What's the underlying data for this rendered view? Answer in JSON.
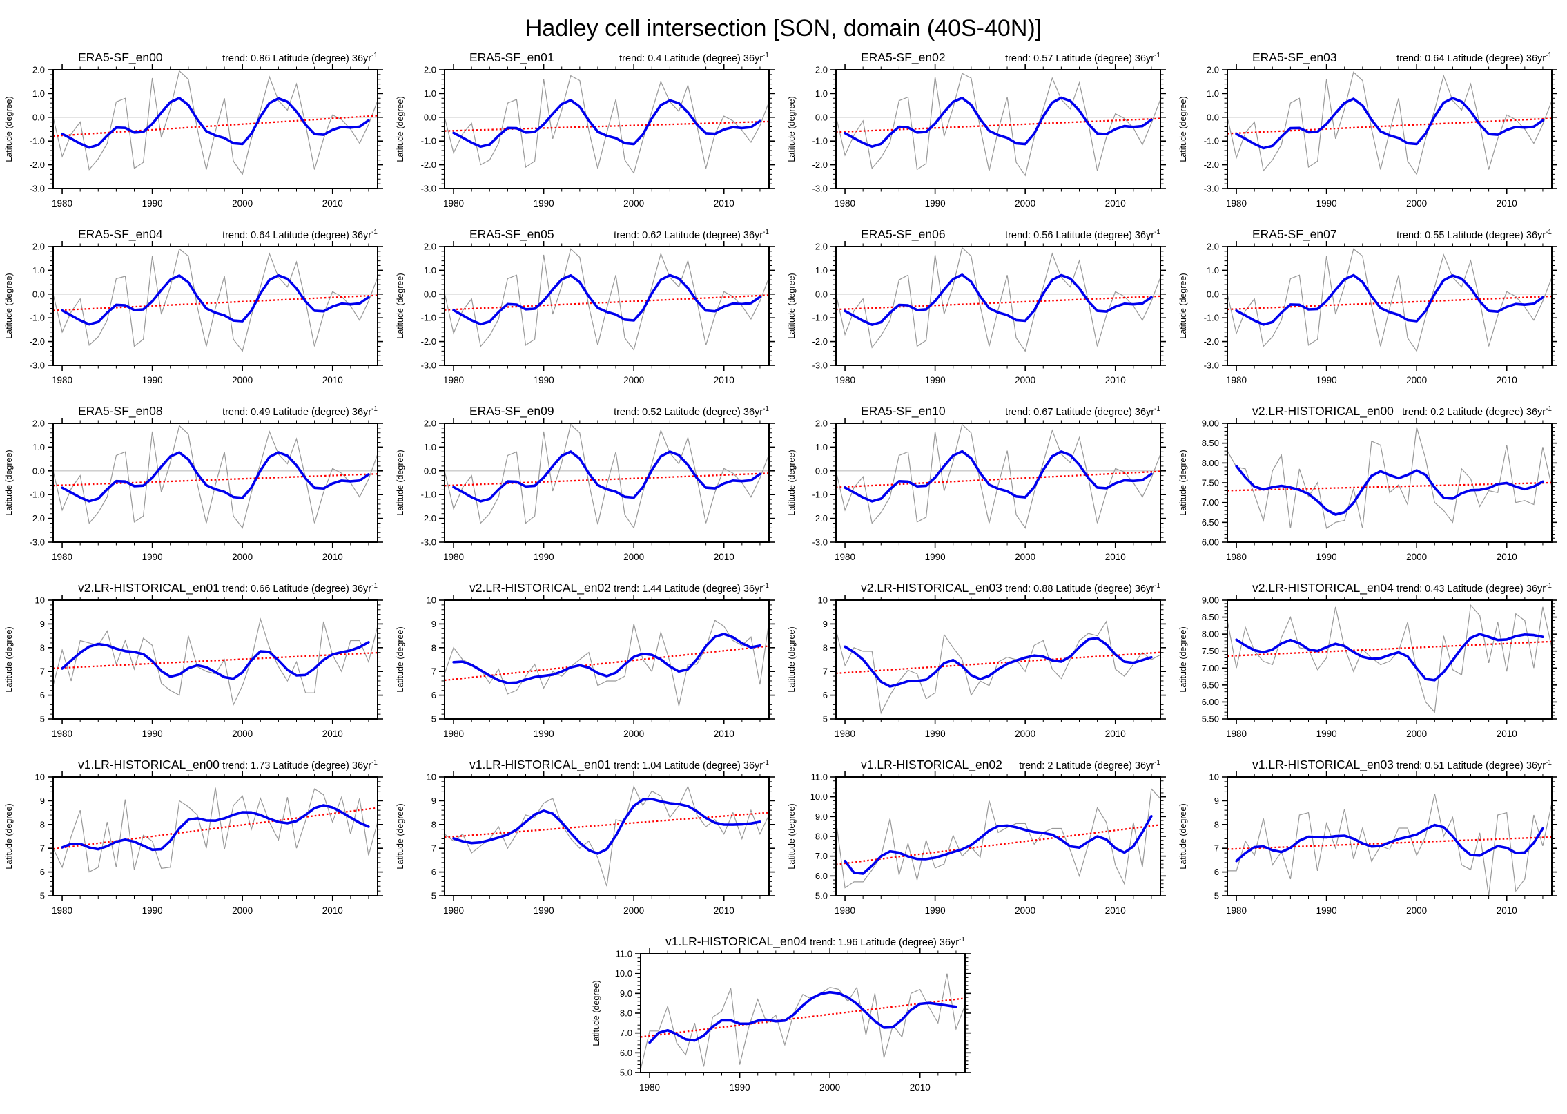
{
  "title": "Hadley cell intersection [SON, domain (40S-40N)]",
  "chart_data": {
    "type": "line",
    "x_range": [
      1979,
      2015
    ],
    "xticks": [
      1980,
      1990,
      2000,
      2010
    ],
    "x_minor_step": 2,
    "ylabel": "Latitude (degree)",
    "trend_prefix": "trend:",
    "trend_units": "Latitude (degree) 36yr",
    "trend_sup": "-1",
    "legend": "gray: annual value, blue: smoothed, red dotted: linear trend",
    "colors": {
      "raw_line": "#999999",
      "smooth_line": "#0000ee",
      "trend_line": "#ff0000",
      "zero_line": "#c9c9c9",
      "frame": "#000000"
    },
    "panels": [
      {
        "title": "ERA5-SF_en00",
        "trend": "0.86",
        "ylim": [
          -3,
          2
        ],
        "ymajor": 1,
        "yminor": 0.2,
        "ydec": 1,
        "zero": true,
        "raw": [
          0.0,
          -1.65,
          -0.7,
          -0.2,
          -2.2,
          -1.75,
          -1.1,
          0.65,
          0.8,
          -2.15,
          -1.9,
          1.65,
          -0.85,
          0.35,
          1.95,
          1.6,
          -0.5,
          -2.2,
          -0.6,
          0.8,
          -1.85,
          -2.4,
          -0.9,
          0.3,
          1.7,
          0.7,
          0.3,
          1.4,
          -0.3,
          -2.2,
          -0.9,
          0.1,
          -0.1,
          -0.5,
          -1.1,
          -0.3,
          0.7
        ]
      },
      {
        "title": "ERA5-SF_en01",
        "trend": "0.4",
        "ylim": [
          -3,
          2
        ],
        "ymajor": 1,
        "yminor": 0.2,
        "ydec": 1,
        "zero": true,
        "raw": [
          0.0,
          -1.5,
          -0.7,
          -0.25,
          -2.0,
          -1.8,
          -1.1,
          0.6,
          0.75,
          -2.1,
          -1.85,
          1.6,
          -0.9,
          0.3,
          1.75,
          1.55,
          -0.55,
          -2.15,
          -0.65,
          0.75,
          -1.8,
          -2.35,
          -0.95,
          0.25,
          1.5,
          0.65,
          0.25,
          1.35,
          -0.35,
          -2.15,
          -0.7,
          0.05,
          -0.15,
          -0.55,
          -1.05,
          -0.35,
          0.65
        ]
      },
      {
        "title": "ERA5-SF_en02",
        "trend": "0.57",
        "ylim": [
          -3,
          2
        ],
        "ymajor": 1,
        "yminor": 0.2,
        "ydec": 1,
        "zero": true,
        "raw": [
          0.05,
          -1.6,
          -0.75,
          -0.15,
          -2.15,
          -1.7,
          -1.05,
          0.7,
          0.85,
          -2.2,
          -1.95,
          1.7,
          -0.8,
          0.4,
          1.85,
          1.65,
          -0.45,
          -2.25,
          -0.55,
          0.85,
          -1.9,
          -2.45,
          -0.85,
          0.35,
          1.65,
          0.75,
          0.35,
          1.45,
          -0.25,
          -2.25,
          -0.85,
          0.15,
          -0.05,
          -0.45,
          -1.15,
          -0.25,
          0.75
        ]
      },
      {
        "title": "ERA5-SF_en03",
        "trend": "0.64",
        "ylim": [
          -3,
          2
        ],
        "ymajor": 1,
        "yminor": 0.2,
        "ydec": 1,
        "zero": true,
        "raw": [
          0.0,
          -1.7,
          -0.65,
          -0.2,
          -2.25,
          -1.8,
          -1.15,
          0.6,
          0.8,
          -2.1,
          -1.85,
          1.6,
          -0.9,
          0.35,
          1.9,
          1.55,
          -0.5,
          -2.2,
          -0.6,
          0.8,
          -1.85,
          -2.4,
          -0.9,
          0.3,
          1.75,
          0.7,
          0.3,
          1.4,
          -0.3,
          -2.2,
          -0.9,
          0.1,
          -0.1,
          -0.5,
          -1.1,
          -0.3,
          0.7
        ]
      },
      {
        "title": "ERA5-SF_en04",
        "trend": "0.64",
        "ylim": [
          -3,
          2
        ],
        "ymajor": 1,
        "yminor": 0.2,
        "ydec": 1,
        "zero": true,
        "raw": [
          0.0,
          -1.6,
          -0.75,
          -0.2,
          -2.15,
          -1.8,
          -1.1,
          0.65,
          0.75,
          -2.2,
          -1.9,
          1.6,
          -0.85,
          0.3,
          1.9,
          1.6,
          -0.55,
          -2.2,
          -0.6,
          0.75,
          -1.9,
          -2.4,
          -0.9,
          0.3,
          1.7,
          0.7,
          0.3,
          1.35,
          -0.3,
          -2.2,
          -0.85,
          0.1,
          -0.1,
          -0.5,
          -1.1,
          -0.3,
          0.7
        ]
      },
      {
        "title": "ERA5-SF_en05",
        "trend": "0.62",
        "ylim": [
          -3,
          2
        ],
        "ymajor": 1,
        "yminor": 0.2,
        "ydec": 1,
        "zero": true,
        "raw": [
          0.05,
          -1.65,
          -0.7,
          -0.2,
          -2.2,
          -1.75,
          -1.05,
          0.65,
          0.8,
          -2.15,
          -1.9,
          1.65,
          -0.85,
          0.35,
          1.9,
          1.55,
          -0.5,
          -2.15,
          -0.6,
          0.8,
          -1.85,
          -2.35,
          -0.9,
          0.3,
          1.7,
          0.7,
          0.3,
          1.4,
          -0.3,
          -2.15,
          -0.9,
          0.1,
          -0.1,
          -0.5,
          -1.05,
          -0.3,
          0.7
        ]
      },
      {
        "title": "ERA5-SF_en06",
        "trend": "0.56",
        "ylim": [
          -3,
          2
        ],
        "ymajor": 1,
        "yminor": 0.2,
        "ydec": 1,
        "zero": true,
        "raw": [
          0.0,
          -1.7,
          -0.7,
          -0.2,
          -2.25,
          -1.75,
          -1.1,
          0.6,
          0.8,
          -2.2,
          -1.95,
          1.65,
          -0.85,
          0.35,
          1.95,
          1.6,
          -0.5,
          -2.2,
          -0.65,
          0.8,
          -1.85,
          -2.4,
          -0.9,
          0.3,
          1.7,
          0.7,
          0.3,
          1.4,
          -0.3,
          -2.2,
          -0.9,
          0.1,
          -0.1,
          -0.5,
          -1.1,
          -0.3,
          0.7
        ]
      },
      {
        "title": "ERA5-SF_en07",
        "trend": "0.55",
        "ylim": [
          -3,
          2
        ],
        "ymajor": 1,
        "yminor": 0.2,
        "ydec": 1,
        "zero": true,
        "raw": [
          0.0,
          -1.65,
          -0.7,
          -0.2,
          -2.2,
          -1.8,
          -1.1,
          0.65,
          0.8,
          -2.15,
          -1.9,
          1.6,
          -0.85,
          0.35,
          1.9,
          1.6,
          -0.5,
          -2.2,
          -0.6,
          0.8,
          -1.85,
          -2.4,
          -0.95,
          0.3,
          1.65,
          0.7,
          0.3,
          1.4,
          -0.3,
          -2.2,
          -0.9,
          0.1,
          -0.1,
          -0.55,
          -1.1,
          -0.3,
          0.7
        ]
      },
      {
        "title": "ERA5-SF_en08",
        "trend": "0.49",
        "ylim": [
          -3,
          2
        ],
        "ymajor": 1,
        "yminor": 0.2,
        "ydec": 1,
        "zero": true,
        "raw": [
          0.0,
          -1.65,
          -0.75,
          -0.2,
          -2.2,
          -1.75,
          -1.1,
          0.65,
          0.8,
          -2.15,
          -1.9,
          1.65,
          -0.9,
          0.35,
          1.9,
          1.55,
          -0.55,
          -2.2,
          -0.6,
          0.8,
          -1.9,
          -2.4,
          -0.9,
          0.3,
          1.65,
          0.7,
          0.3,
          1.35,
          -0.3,
          -2.2,
          -0.9,
          0.1,
          -0.1,
          -0.5,
          -1.1,
          -0.35,
          0.7
        ]
      },
      {
        "title": "ERA5-SF_en09",
        "trend": "0.52",
        "ylim": [
          -3,
          2
        ],
        "ymajor": 1,
        "yminor": 0.2,
        "ydec": 1,
        "zero": true,
        "raw": [
          0.0,
          -1.6,
          -0.7,
          -0.2,
          -2.2,
          -1.8,
          -1.1,
          0.65,
          0.8,
          -2.2,
          -1.9,
          1.65,
          -0.85,
          0.35,
          1.95,
          1.6,
          -0.5,
          -2.25,
          -0.6,
          0.8,
          -1.85,
          -2.4,
          -0.9,
          0.3,
          1.7,
          0.75,
          0.3,
          1.4,
          -0.3,
          -2.2,
          -0.9,
          0.1,
          -0.1,
          -0.5,
          -1.1,
          -0.3,
          0.7
        ]
      },
      {
        "title": "ERA5-SF_en10",
        "trend": "0.67",
        "ylim": [
          -3,
          2
        ],
        "ymajor": 1,
        "yminor": 0.2,
        "ydec": 1,
        "zero": true,
        "raw": [
          0.0,
          -1.65,
          -0.7,
          -0.25,
          -2.2,
          -1.75,
          -1.1,
          0.65,
          0.8,
          -2.15,
          -1.95,
          1.65,
          -0.85,
          0.4,
          1.95,
          1.6,
          -0.5,
          -2.2,
          -0.6,
          0.85,
          -1.85,
          -2.4,
          -0.9,
          0.35,
          1.7,
          0.7,
          0.35,
          1.4,
          -0.3,
          -2.2,
          -0.9,
          0.1,
          -0.05,
          -0.5,
          -1.1,
          -0.3,
          0.7
        ]
      },
      {
        "title": "v2.LR-HISTORICAL_en00",
        "trend": "0.2",
        "ylim": [
          6,
          9
        ],
        "ymajor": 0.5,
        "yminor": 0.1,
        "ydec": 2,
        "zero": false,
        "raw": [
          8.3,
          7.9,
          7.85,
          7.2,
          6.55,
          7.8,
          8.2,
          6.35,
          7.85,
          7.15,
          7.5,
          6.35,
          6.5,
          6.55,
          7.35,
          6.35,
          8.55,
          8.45,
          7.25,
          7.45,
          6.95,
          8.9,
          8.1,
          7.0,
          6.8,
          6.5,
          7.85,
          7.6,
          6.9,
          7.3,
          7.25,
          8.45,
          7.0,
          7.05,
          6.95,
          8.4,
          7.4
        ]
      },
      {
        "title": "v2.LR-HISTORICAL_en01",
        "trend": "0.66",
        "ylim": [
          5,
          10
        ],
        "ymajor": 1,
        "yminor": 0.2,
        "ydec": 0,
        "zero": false,
        "raw": [
          6.4,
          7.9,
          6.6,
          8.3,
          8.2,
          8.1,
          8.7,
          7.3,
          8.3,
          7.1,
          8.4,
          8.1,
          6.5,
          6.2,
          6.0,
          8.5,
          7.2,
          7.0,
          6.9,
          7.5,
          5.6,
          6.4,
          7.5,
          9.2,
          8.0,
          7.2,
          6.6,
          7.4,
          6.1,
          6.1,
          9.1,
          7.7,
          7.0,
          8.3,
          8.3,
          7.4,
          8.9
        ]
      },
      {
        "title": "v2.LR-HISTORICAL_en02",
        "trend": "1.44",
        "ylim": [
          5,
          10
        ],
        "ymajor": 1,
        "yminor": 0.2,
        "ydec": 0,
        "zero": false,
        "raw": [
          6.9,
          8.0,
          7.5,
          7.3,
          7.1,
          6.5,
          7.1,
          6.05,
          6.2,
          6.8,
          7.3,
          6.3,
          7.0,
          6.8,
          7.2,
          7.5,
          7.8,
          6.4,
          6.6,
          6.6,
          6.8,
          9.0,
          7.5,
          7.0,
          8.65,
          7.4,
          5.55,
          7.3,
          7.3,
          8.0,
          9.15,
          8.9,
          8.3,
          8.1,
          8.45,
          6.45,
          9.1
        ]
      },
      {
        "title": "v2.LR-HISTORICAL_en03",
        "trend": "0.88",
        "ylim": [
          5,
          10
        ],
        "ymajor": 1,
        "yminor": 0.2,
        "ydec": 0,
        "zero": false,
        "raw": [
          8.75,
          7.25,
          8.0,
          7.85,
          7.85,
          5.25,
          6.0,
          6.6,
          7.05,
          6.9,
          5.85,
          6.1,
          8.55,
          8.0,
          7.5,
          6.0,
          6.6,
          6.4,
          7.4,
          7.6,
          7.5,
          7.0,
          8.1,
          8.3,
          7.1,
          6.7,
          7.5,
          8.3,
          8.6,
          8.5,
          9.1,
          7.1,
          6.8,
          7.3,
          7.8,
          7.5,
          7.7
        ]
      },
      {
        "title": "v2.LR-HISTORICAL_en04",
        "trend": "0.43",
        "ylim": [
          5.5,
          9
        ],
        "ymajor": 0.5,
        "yminor": 0.1,
        "ydec": 2,
        "zero": false,
        "raw": [
          8.4,
          7.0,
          8.2,
          7.5,
          7.2,
          7.1,
          7.9,
          8.5,
          7.6,
          7.55,
          6.95,
          7.3,
          8.8,
          7.6,
          6.9,
          7.55,
          7.3,
          7.1,
          7.2,
          7.5,
          8.35,
          6.9,
          6.0,
          5.7,
          7.95,
          6.95,
          6.8,
          8.85,
          8.55,
          7.15,
          8.35,
          6.9,
          8.6,
          8.4,
          7.0,
          8.8,
          7.6
        ]
      },
      {
        "title": "v1.LR-HISTORICAL_en00",
        "trend": "1.73",
        "ylim": [
          5,
          10
        ],
        "ymajor": 1,
        "yminor": 0.2,
        "ydec": 0,
        "zero": false,
        "raw": [
          7.0,
          6.2,
          7.5,
          8.6,
          6.0,
          6.2,
          8.1,
          6.2,
          9.05,
          6.1,
          7.55,
          7.3,
          6.15,
          6.2,
          9.0,
          8.75,
          8.4,
          7.0,
          9.55,
          6.95,
          8.8,
          9.2,
          7.8,
          9.1,
          8.1,
          7.35,
          9.15,
          7.0,
          8.15,
          9.5,
          9.25,
          8.1,
          9.15,
          7.6,
          9.1,
          6.7,
          8.1
        ]
      },
      {
        "title": "v1.LR-HISTORICAL_en01",
        "trend": "1.04",
        "ylim": [
          5,
          10
        ],
        "ymajor": 1,
        "yminor": 0.2,
        "ydec": 0,
        "zero": false,
        "raw": [
          7.6,
          7.3,
          7.6,
          6.8,
          7.1,
          7.4,
          7.9,
          7.0,
          7.6,
          8.4,
          8.3,
          8.9,
          9.1,
          8.0,
          7.4,
          7.0,
          7.3,
          6.6,
          5.4,
          8.2,
          8.1,
          9.6,
          8.8,
          9.4,
          9.2,
          8.3,
          8.8,
          9.6,
          8.4,
          7.9,
          8.2,
          7.6,
          8.5,
          7.4,
          8.6,
          7.6,
          8.4
        ]
      },
      {
        "title": "v1.LR-HISTORICAL_en02",
        "trend": "2",
        "ylim": [
          5,
          11
        ],
        "ymajor": 1,
        "yminor": 0.2,
        "ydec": 1,
        "zero": false,
        "raw": [
          8.8,
          5.4,
          5.7,
          5.7,
          6.3,
          7.0,
          8.9,
          6.05,
          7.65,
          5.8,
          7.8,
          6.4,
          6.6,
          8.05,
          7.0,
          7.45,
          6.95,
          9.8,
          8.2,
          8.45,
          8.65,
          8.65,
          7.6,
          8.2,
          8.4,
          8.4,
          7.3,
          6.0,
          7.6,
          9.45,
          8.7,
          6.55,
          5.6,
          8.7,
          6.45,
          10.4,
          9.9
        ]
      },
      {
        "title": "v1.LR-HISTORICAL_en03",
        "trend": "0.51",
        "ylim": [
          5,
          10
        ],
        "ymajor": 1,
        "yminor": 0.2,
        "ydec": 0,
        "zero": false,
        "raw": [
          6.05,
          6.05,
          7.3,
          6.7,
          8.25,
          6.3,
          6.85,
          5.7,
          8.4,
          8.5,
          6.05,
          8.05,
          7.0,
          8.65,
          6.55,
          7.85,
          6.45,
          7.1,
          6.95,
          7.85,
          7.85,
          6.7,
          7.5,
          9.3,
          7.5,
          8.3,
          6.3,
          6.1,
          7.65,
          5.0,
          8.4,
          8.5,
          5.2,
          5.7,
          8.4,
          7.1,
          8.9
        ]
      },
      {
        "title": "v1.LR-HISTORICAL_en04",
        "trend": "1.96",
        "ylim": [
          5,
          11
        ],
        "ymajor": 1,
        "yminor": 0.2,
        "ydec": 1,
        "zero": false,
        "raw": [
          5.15,
          7.1,
          7.1,
          8.35,
          6.5,
          5.9,
          7.5,
          5.3,
          7.8,
          8.1,
          9.25,
          5.4,
          7.3,
          8.7,
          7.5,
          7.9,
          6.4,
          8.0,
          8.95,
          8.7,
          9.0,
          9.3,
          9.2,
          8.6,
          9.3,
          6.9,
          9.0,
          5.75,
          7.4,
          6.8,
          9.0,
          9.2,
          8.3,
          7.5,
          10.0,
          7.2,
          8.4
        ]
      }
    ]
  }
}
